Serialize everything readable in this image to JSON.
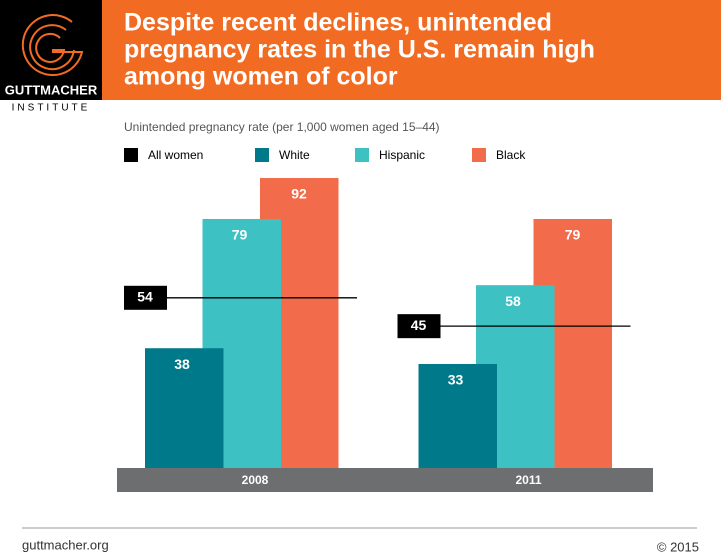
{
  "logo": {
    "name": "GUTTMACHER",
    "subname": "INSTITUTE"
  },
  "footer": {
    "source": "guttmacher.org",
    "copyright": "© 2015"
  },
  "chart_data": {
    "type": "bar",
    "title": [
      "Despite recent declines, unintended",
      "pregnancy rates in the U.S. remain high",
      "among women of color"
    ],
    "y_label": "Unintended pregnancy rate (per 1,000 women aged 15–44)",
    "categories": [
      "2008",
      "2011"
    ],
    "series": [
      {
        "name": "All women",
        "color": "#000000",
        "values": [
          54,
          45
        ],
        "style": "line"
      },
      {
        "name": "White",
        "color": "#007a8a",
        "values": [
          38,
          33
        ]
      },
      {
        "name": "Hispanic",
        "color": "#3dc1c3",
        "values": [
          79,
          58
        ]
      },
      {
        "name": "Black",
        "color": "#f26b4a",
        "values": [
          92,
          79
        ]
      }
    ],
    "ylim": [
      0,
      100
    ]
  }
}
